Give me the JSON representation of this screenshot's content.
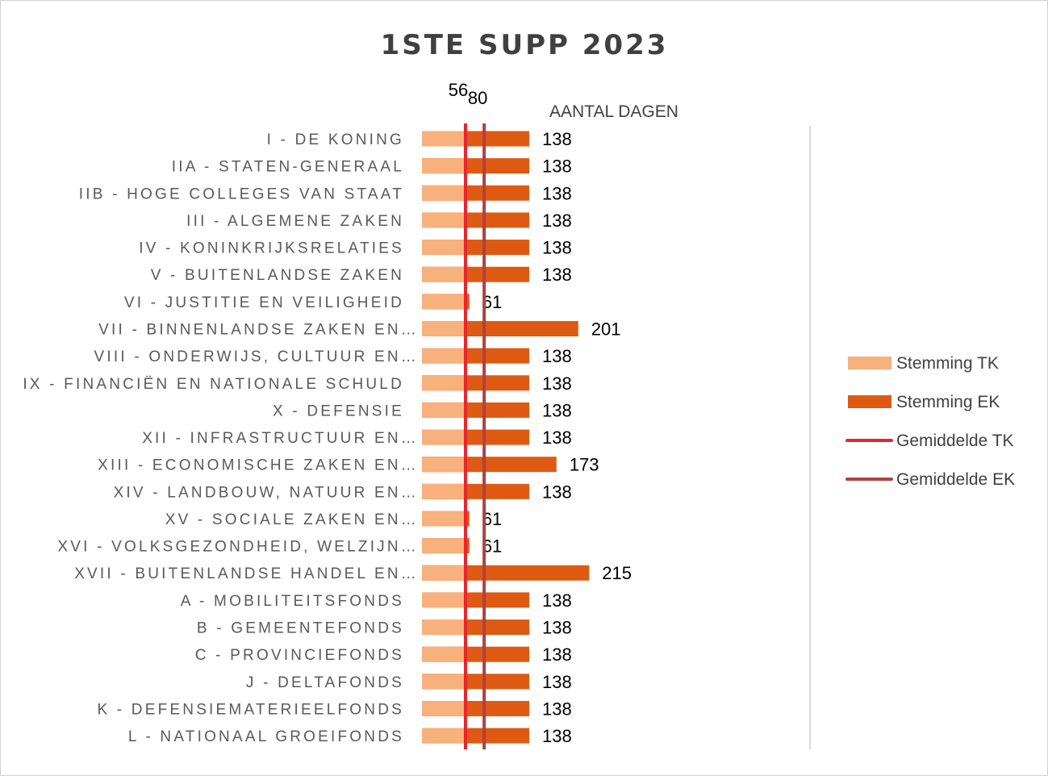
{
  "chart_data": {
    "type": "bar",
    "orientation": "horizontal",
    "title": "1STE SUPP 2023",
    "xlabel": "AANTAL DAGEN",
    "categories": [
      "I - DE KONING",
      "IIA - STATEN-GENERAAL",
      "IIB - HOGE COLLEGES VAN STAAT",
      "III - ALGEMENE ZAKEN",
      "IV - KONINKRIJKSRELATIES",
      "V - BUITENLANDSE ZAKEN",
      "VI - JUSTITIE EN VEILIGHEID",
      "VII - BINNENLANDSE ZAKEN EN…",
      "VIII - ONDERWIJS, CULTUUR EN…",
      "IX - FINANCIËN EN NATIONALE SCHULD",
      "X - DEFENSIE",
      "XII - INFRASTRUCTUUR EN…",
      "XIII - ECONOMISCHE ZAKEN EN…",
      "XIV - LANDBOUW, NATUUR EN…",
      "XV - SOCIALE ZAKEN EN…",
      "XVI - VOLKSGEZONDHEID, WELZIJN…",
      "XVII - BUITENLANDSE HANDEL EN…",
      "A - MOBILITEITSFONDS",
      "B - GEMEENTEFONDS",
      "C - PROVINCIEFONDS",
      "J - DELTAFONDS",
      "K - DEFENSIEMATERIEELFONDS",
      "L - NATIONAAL GROEIFONDS"
    ],
    "series": [
      {
        "name": "Stemming TK",
        "color": "#F8B07C",
        "values": [
          54,
          54,
          54,
          54,
          54,
          54,
          54,
          54,
          54,
          54,
          54,
          54,
          54,
          54,
          54,
          54,
          54,
          54,
          54,
          54,
          54,
          54,
          54
        ]
      },
      {
        "name": "Stemming EK",
        "color": "#DE5A12",
        "values": [
          138,
          138,
          138,
          138,
          138,
          138,
          61,
          201,
          138,
          138,
          138,
          138,
          173,
          138,
          61,
          61,
          215,
          138,
          138,
          138,
          138,
          138,
          138
        ]
      }
    ],
    "averages": [
      {
        "name": "Gemiddelde TK",
        "value": 56,
        "label": "56",
        "color": "#E8262A"
      },
      {
        "name": "Gemiddelde EK",
        "value": 80,
        "label": "80",
        "color": "#B04040"
      }
    ],
    "xlim": [
      0,
      230
    ],
    "grid": false,
    "legend_position": "right"
  }
}
